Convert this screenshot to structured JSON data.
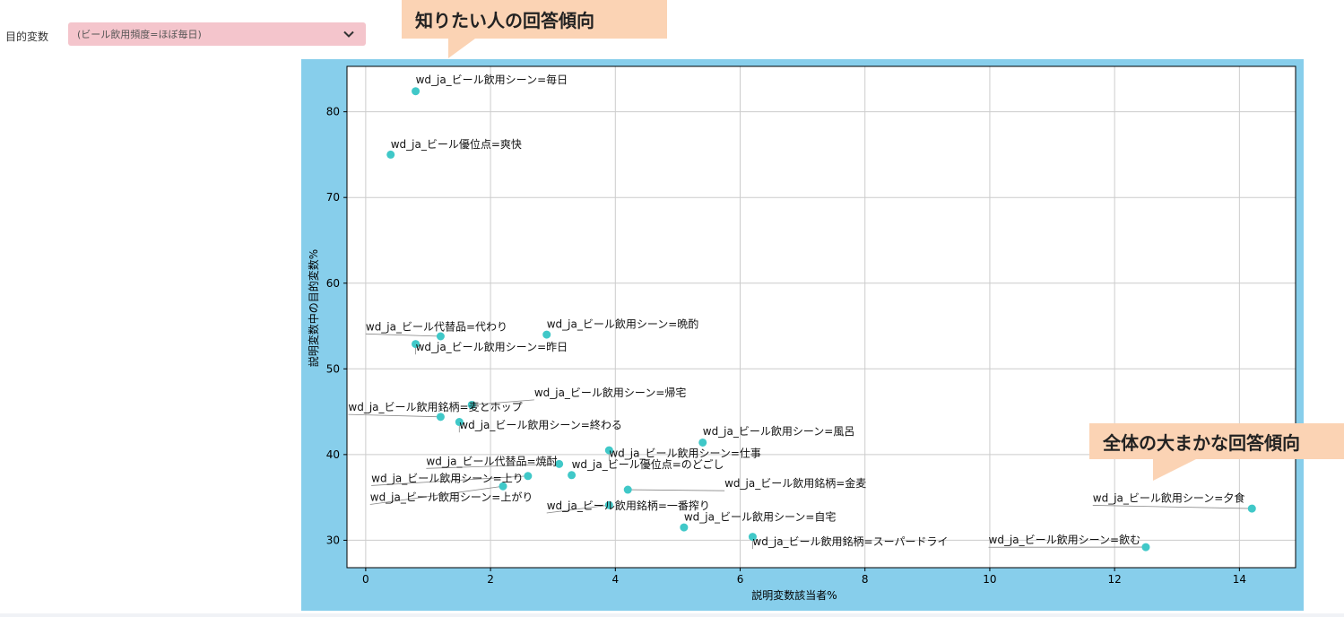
{
  "controls": {
    "target_label": "目的変数",
    "target_value": "(ビール飲用頻度=ほぼ毎日)"
  },
  "callouts": {
    "top": "知りたい人の回答傾向",
    "right": "全体の大まかな回答傾向"
  },
  "colors": {
    "panel_bg": "#87ceeb",
    "point": "#40c8c8",
    "callout": "#fbd3b4",
    "select_bg": "#f4c5cc"
  },
  "chart_data": {
    "type": "scatter",
    "xlabel": "説明変数該当者%",
    "ylabel": "説明変数中の目的変数%",
    "xlim": [
      -0.3,
      14.9
    ],
    "ylim": [
      26.8,
      85.3
    ],
    "xticks": [
      0,
      2,
      4,
      6,
      8,
      10,
      12,
      14
    ],
    "yticks": [
      30,
      40,
      50,
      60,
      70,
      80
    ],
    "grid": true,
    "points": [
      {
        "label": "wd_ja_ビール飲用シーン=毎日",
        "x": 0.8,
        "y": 82.4,
        "tx": 0.8,
        "ty": 83.3
      },
      {
        "label": "wd_ja_ビール優位点=爽快",
        "x": 0.4,
        "y": 75.0,
        "tx": 0.4,
        "ty": 75.8
      },
      {
        "label": "wd_ja_ビール代替品=代わり",
        "x": 1.2,
        "y": 53.8,
        "tx": 0.0,
        "ty": 54.5
      },
      {
        "label": "wd_ja_ビール飲用シーン=晩酌",
        "x": 2.9,
        "y": 54.0,
        "tx": 2.9,
        "ty": 54.8
      },
      {
        "label": "wd_ja_ビール飲用シーン=昨日",
        "x": 0.8,
        "y": 52.9,
        "tx": 0.8,
        "ty": 52.1
      },
      {
        "label": "wd_ja_ビール飲用シーン=帰宅",
        "x": 1.7,
        "y": 45.8,
        "tx": 2.7,
        "ty": 46.8
      },
      {
        "label": "wd_ja_ビール飲用銘柄=麦とホップ",
        "x": 1.2,
        "y": 44.4,
        "tx": -0.28,
        "ty": 45.1
      },
      {
        "label": "wd_ja_ビール飲用シーン=終わる",
        "x": 1.5,
        "y": 43.8,
        "tx": 1.5,
        "ty": 43.0
      },
      {
        "label": "wd_ja_ビール飲用シーン=風呂",
        "x": 5.4,
        "y": 41.4,
        "tx": 5.4,
        "ty": 42.3
      },
      {
        "label": "wd_ja_ビール飲用シーン=仕事",
        "x": 3.9,
        "y": 40.5,
        "tx": 3.9,
        "ty": 39.7
      },
      {
        "label": "wd_ja_ビール代替品=焼酎",
        "x": 3.1,
        "y": 38.9,
        "tx": 0.97,
        "ty": 38.8
      },
      {
        "label": "wd_ja_ビール優位点=のどごし",
        "x": 3.3,
        "y": 37.6,
        "tx": 3.3,
        "ty": 38.4
      },
      {
        "label": "wd_ja_ビール飲用シーン=上り",
        "x": 2.6,
        "y": 37.5,
        "tx": 0.09,
        "ty": 36.8
      },
      {
        "label": "wd_ja_ビール飲用シーン=上がり",
        "x": 2.2,
        "y": 36.3,
        "tx": 0.07,
        "ty": 34.6
      },
      {
        "label": "wd_ja_ビール飲用銘柄=金麦",
        "x": 4.2,
        "y": 35.9,
        "tx": 5.75,
        "ty": 36.2
      },
      {
        "label": "wd_ja_ビール飲用銘柄=一番搾り",
        "x": 3.9,
        "y": 34.1,
        "tx": 2.9,
        "ty": 33.6
      },
      {
        "label": "wd_ja_ビール飲用シーン=自宅",
        "x": 5.1,
        "y": 31.5,
        "tx": 5.1,
        "ty": 32.3
      },
      {
        "label": "wd_ja_ビール飲用シーン=夕食",
        "x": 14.2,
        "y": 33.7,
        "tx": 11.65,
        "ty": 34.5
      },
      {
        "label": "wd_ja_ビール飲用シーン=飲む",
        "x": 12.5,
        "y": 29.2,
        "tx": 9.98,
        "ty": 29.6
      },
      {
        "label": "wd_ja_ビール飲用銘柄=スーパードライ",
        "x": 6.2,
        "y": 30.4,
        "tx": 6.2,
        "ty": 29.4
      }
    ]
  }
}
